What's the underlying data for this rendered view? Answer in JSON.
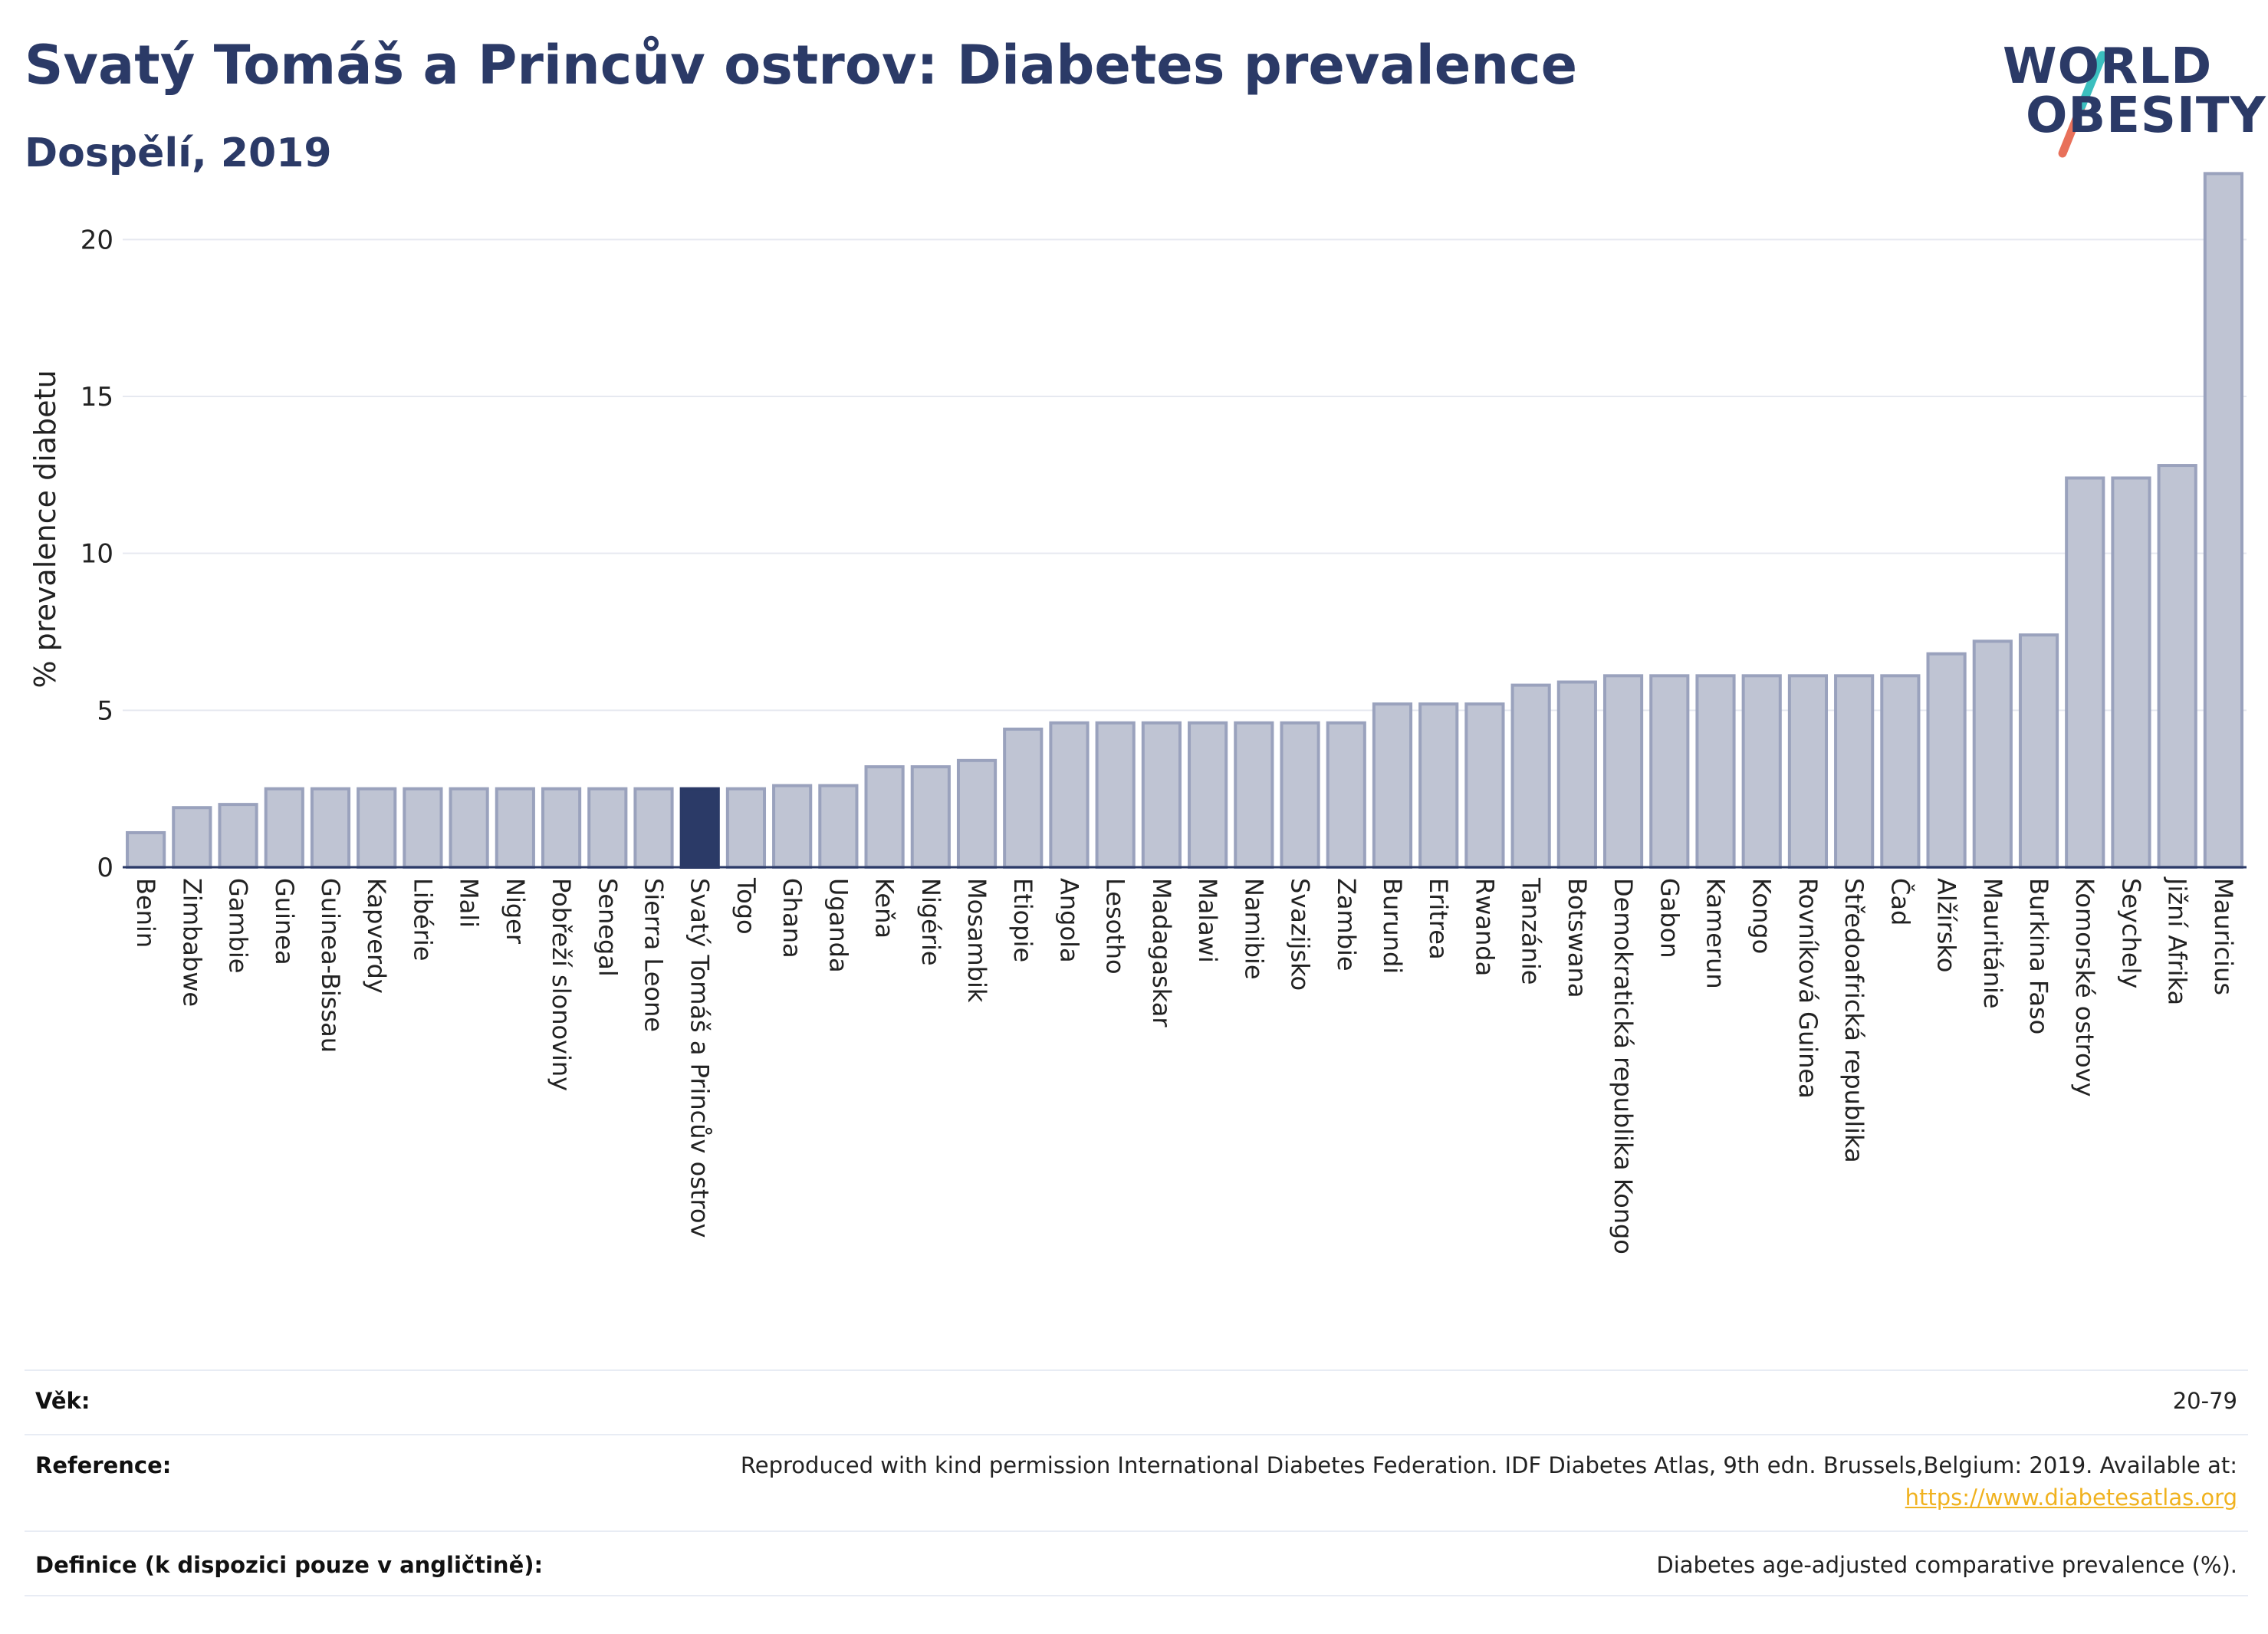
{
  "header": {
    "title": "Svatý Tomáš a Princův ostrov: Diabetes prevalence",
    "subtitle": "Dospělí, 2019"
  },
  "logo": {
    "line1": "WORLD",
    "line2": "OBESITY",
    "colors": {
      "text": "#2b3a67",
      "slash_top": "#3bbfbf",
      "slash_bottom": "#e8705a"
    }
  },
  "chart_data": {
    "type": "bar",
    "ylabel": "% prevalence diabetu",
    "xlabel": "",
    "ylim": [
      0,
      22.5
    ],
    "yticks": [
      0,
      5,
      10,
      15,
      20
    ],
    "grid": true,
    "highlight": "Svatý Tomáš a Princův ostrov",
    "colors": {
      "bar": "#bfc4d3",
      "bar_edge": "#9aa2bd",
      "highlight": "#2b3a67",
      "grid": "#e6e9f0"
    },
    "categories": [
      "Benin",
      "Zimbabwe",
      "Gambie",
      "Guinea",
      "Guinea-Bissau",
      "Kapverdy",
      "Libérie",
      "Mali",
      "Niger",
      "Pobřeží slonoviny",
      "Senegal",
      "Sierra Leone",
      "Svatý Tomáš a Princův ostrov",
      "Togo",
      "Ghana",
      "Uganda",
      "Keňa",
      "Nigérie",
      "Mosambik",
      "Etiopie",
      "Angola",
      "Lesotho",
      "Madagaskar",
      "Malawi",
      "Namibie",
      "Svazijsko",
      "Zambie",
      "Burundi",
      "Eritrea",
      "Rwanda",
      "Tanzánie",
      "Botswana",
      "Demokratická republika Kongo",
      "Gabon",
      "Kamerun",
      "Kongo",
      "Rovníková Guinea",
      "Středoafrická republika",
      "Čad",
      "Alžírsko",
      "Mauritánie",
      "Burkina Faso",
      "Komorské ostrovy",
      "Seychely",
      "Jižní Afrika",
      "Mauricius"
    ],
    "values": [
      1.1,
      1.9,
      2.0,
      2.5,
      2.5,
      2.5,
      2.5,
      2.5,
      2.5,
      2.5,
      2.5,
      2.5,
      2.5,
      2.5,
      2.6,
      2.6,
      3.2,
      3.2,
      3.4,
      4.4,
      4.6,
      4.6,
      4.6,
      4.6,
      4.6,
      4.6,
      4.6,
      5.2,
      5.2,
      5.2,
      5.8,
      5.9,
      6.1,
      6.1,
      6.1,
      6.1,
      6.1,
      6.1,
      6.1,
      6.8,
      7.2,
      7.4,
      12.4,
      12.4,
      12.8,
      22.1
    ]
  },
  "meta": {
    "rows": [
      {
        "label": "Věk:",
        "value": "20-79"
      },
      {
        "label": "Reference:",
        "value": "Reproduced with kind permission International Diabetes Federation. IDF Diabetes Atlas, 9th edn. Brussels,Belgium: 2019. Available at:",
        "link": "https://www.diabetesatlas.org"
      },
      {
        "label": "Definice (k dispozici pouze v angličtině):",
        "value": "Diabetes age-adjusted comparative prevalence (%)."
      }
    ]
  }
}
